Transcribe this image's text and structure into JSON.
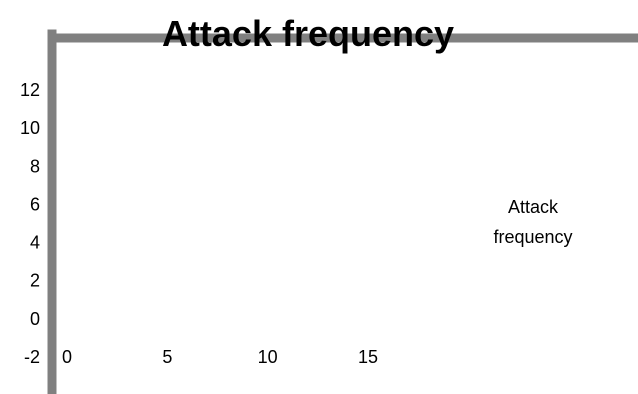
{
  "chart_data": {
    "type": "scatter",
    "title": "Attack frequency",
    "xlabel": "",
    "ylabel": "",
    "x_ticks": [
      "0",
      "5",
      "10",
      "15"
    ],
    "y_ticks": [
      "12",
      "10",
      "8",
      "6",
      "4",
      "2",
      "0",
      "-2"
    ],
    "xlim": [
      0,
      25
    ],
    "ylim": [
      -2,
      13
    ],
    "grid": false,
    "legend": {
      "placement": "right",
      "entries": [
        "Attack frequency"
      ]
    },
    "series": [
      {
        "name": "Attack frequency",
        "x": [],
        "y": []
      }
    ],
    "colors": {
      "axis": "#808080",
      "text": "#000000",
      "background": "#ffffff"
    }
  }
}
